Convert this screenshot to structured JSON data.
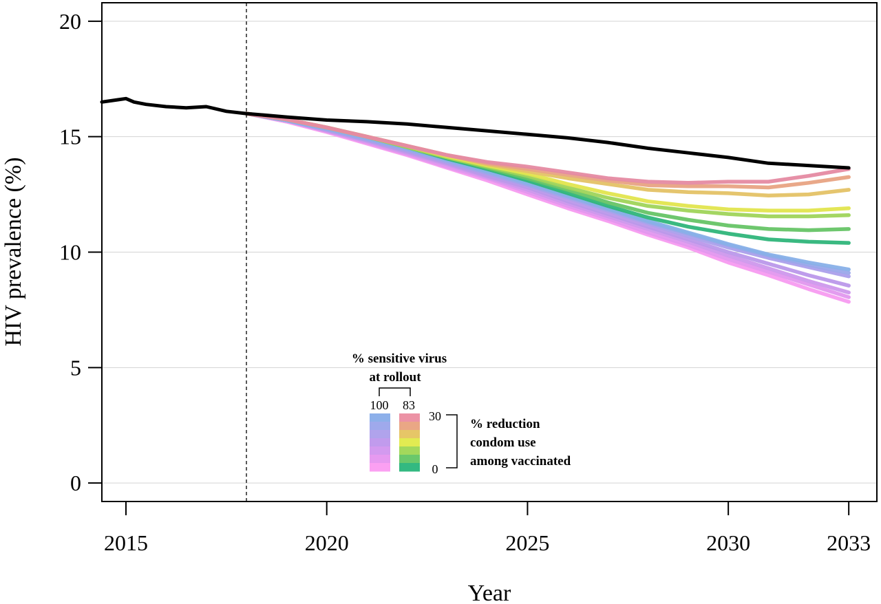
{
  "chart_data": {
    "type": "line",
    "xlabel": "Year",
    "ylabel": "HIV prevalence (%)",
    "xlim": [
      2014.4,
      2033.7
    ],
    "ylim": [
      -0.8,
      20.8
    ],
    "x_ticks": [
      "2015",
      "2020",
      "2025",
      "2030",
      "2033"
    ],
    "x_tick_values": [
      2015,
      2020,
      2025,
      2030,
      2033
    ],
    "y_ticks": [
      "0",
      "5",
      "10",
      "15",
      "20"
    ],
    "y_tick_values": [
      0,
      5,
      10,
      15,
      20
    ],
    "grid": "horizontal",
    "vertical_reference_line": 2018,
    "baseline": {
      "color": "#000000",
      "x": [
        2014.4,
        2014.8,
        2015.0,
        2015.2,
        2015.5,
        2016.0,
        2016.5,
        2017.0,
        2017.5,
        2018.0,
        2019.0,
        2020.0,
        2021.0,
        2022.0,
        2023.0,
        2024.0,
        2025.0,
        2026.0,
        2027.0,
        2028.0,
        2029.0,
        2030.0,
        2031.0,
        2032.0,
        2033.0
      ],
      "y": [
        16.5,
        16.6,
        16.65,
        16.5,
        16.4,
        16.3,
        16.25,
        16.3,
        16.1,
        16.0,
        15.85,
        15.72,
        15.65,
        15.55,
        15.4,
        15.25,
        15.1,
        14.95,
        14.75,
        14.5,
        14.3,
        14.1,
        13.85,
        13.75,
        13.65
      ]
    },
    "scenarios_x": [
      2018,
      2019,
      2020,
      2021,
      2022,
      2023,
      2024,
      2025,
      2026,
      2027,
      2028,
      2029,
      2030,
      2031,
      2032,
      2033
    ],
    "series": [
      {
        "color": "#e58aa2",
        "values": [
          16.0,
          15.75,
          15.4,
          15.0,
          14.6,
          14.2,
          13.9,
          13.7,
          13.45,
          13.2,
          13.05,
          13.0,
          13.05,
          13.05,
          13.3,
          13.6
        ]
      },
      {
        "color": "#e8a383",
        "values": [
          16.0,
          15.75,
          15.4,
          15.0,
          14.6,
          14.2,
          13.85,
          13.6,
          13.35,
          13.1,
          12.9,
          12.85,
          12.85,
          12.8,
          13.0,
          13.25
        ]
      },
      {
        "color": "#e4c266",
        "values": [
          16.0,
          15.75,
          15.4,
          15.0,
          14.6,
          14.2,
          13.8,
          13.5,
          13.2,
          12.95,
          12.7,
          12.6,
          12.55,
          12.45,
          12.5,
          12.7
        ]
      },
      {
        "color": "#e2e54e",
        "values": [
          16.0,
          15.75,
          15.4,
          15.0,
          14.6,
          14.15,
          13.75,
          13.4,
          12.95,
          12.55,
          12.2,
          12.0,
          11.85,
          11.8,
          11.8,
          11.9
        ]
      },
      {
        "color": "#9fd45a",
        "values": [
          16.0,
          15.75,
          15.4,
          15.0,
          14.55,
          14.1,
          13.7,
          13.3,
          12.8,
          12.35,
          12.0,
          11.8,
          11.65,
          11.55,
          11.55,
          11.6
        ]
      },
      {
        "color": "#66c466",
        "values": [
          16.0,
          15.75,
          15.4,
          15.0,
          14.55,
          14.1,
          13.65,
          13.2,
          12.7,
          12.15,
          11.7,
          11.4,
          11.15,
          11.0,
          10.95,
          11.0
        ]
      },
      {
        "color": "#2fb57a",
        "values": [
          16.0,
          15.75,
          15.4,
          15.0,
          14.55,
          14.05,
          13.6,
          13.1,
          12.55,
          12.0,
          11.5,
          11.1,
          10.8,
          10.55,
          10.45,
          10.4
        ]
      },
      {
        "color": "#88b0e8",
        "values": [
          16.0,
          15.7,
          15.35,
          14.95,
          14.5,
          14.0,
          13.5,
          13.0,
          12.45,
          11.9,
          11.35,
          10.85,
          10.35,
          9.9,
          9.55,
          9.25
        ]
      },
      {
        "color": "#9aa8ea",
        "values": [
          16.0,
          15.7,
          15.35,
          14.9,
          14.45,
          13.95,
          13.45,
          12.95,
          12.4,
          11.85,
          11.3,
          10.8,
          10.3,
          9.85,
          9.45,
          9.1
        ]
      },
      {
        "color": "#ab9feb",
        "values": [
          16.0,
          15.7,
          15.3,
          14.85,
          14.4,
          13.9,
          13.4,
          12.9,
          12.35,
          11.8,
          11.25,
          10.7,
          10.2,
          9.75,
          9.35,
          8.95
        ]
      },
      {
        "color": "#bb98ea",
        "values": [
          16.0,
          15.7,
          15.3,
          14.85,
          14.35,
          13.85,
          13.3,
          12.8,
          12.2,
          11.65,
          11.1,
          10.55,
          10.0,
          9.5,
          9.0,
          8.55
        ]
      },
      {
        "color": "#cd98ec",
        "values": [
          16.0,
          15.7,
          15.25,
          14.8,
          14.3,
          13.8,
          13.25,
          12.7,
          12.1,
          11.55,
          11.0,
          10.45,
          9.85,
          9.3,
          8.75,
          8.25
        ]
      },
      {
        "color": "#e197ee",
        "values": [
          16.0,
          15.7,
          15.25,
          14.75,
          14.25,
          13.7,
          13.2,
          12.6,
          12.0,
          11.45,
          10.85,
          10.3,
          9.7,
          9.15,
          8.6,
          8.05
        ]
      },
      {
        "color": "#f79bf0",
        "values": [
          16.0,
          15.65,
          15.2,
          14.7,
          14.2,
          13.65,
          13.1,
          12.5,
          11.9,
          11.35,
          10.75,
          10.2,
          9.55,
          9.0,
          8.4,
          7.85
        ]
      }
    ],
    "legend": {
      "title_line1": "% sensitive virus",
      "title_line2": "at rollout",
      "left_label": "100",
      "right_label": "83",
      "scale_top": "30",
      "scale_bottom": "0",
      "desc_line1": "% reduction",
      "desc_line2": "condom use",
      "desc_line3": "among vaccinated",
      "left_colors": [
        "#8db0ea",
        "#9fa9ec",
        "#b0a3ec",
        "#c19bed",
        "#d39aef",
        "#e69af0",
        "#fba0f2"
      ],
      "right_colors": [
        "#ec92a5",
        "#eaa785",
        "#e6c667",
        "#e2eb52",
        "#a3d85c",
        "#6ac86b",
        "#33b981"
      ]
    }
  }
}
